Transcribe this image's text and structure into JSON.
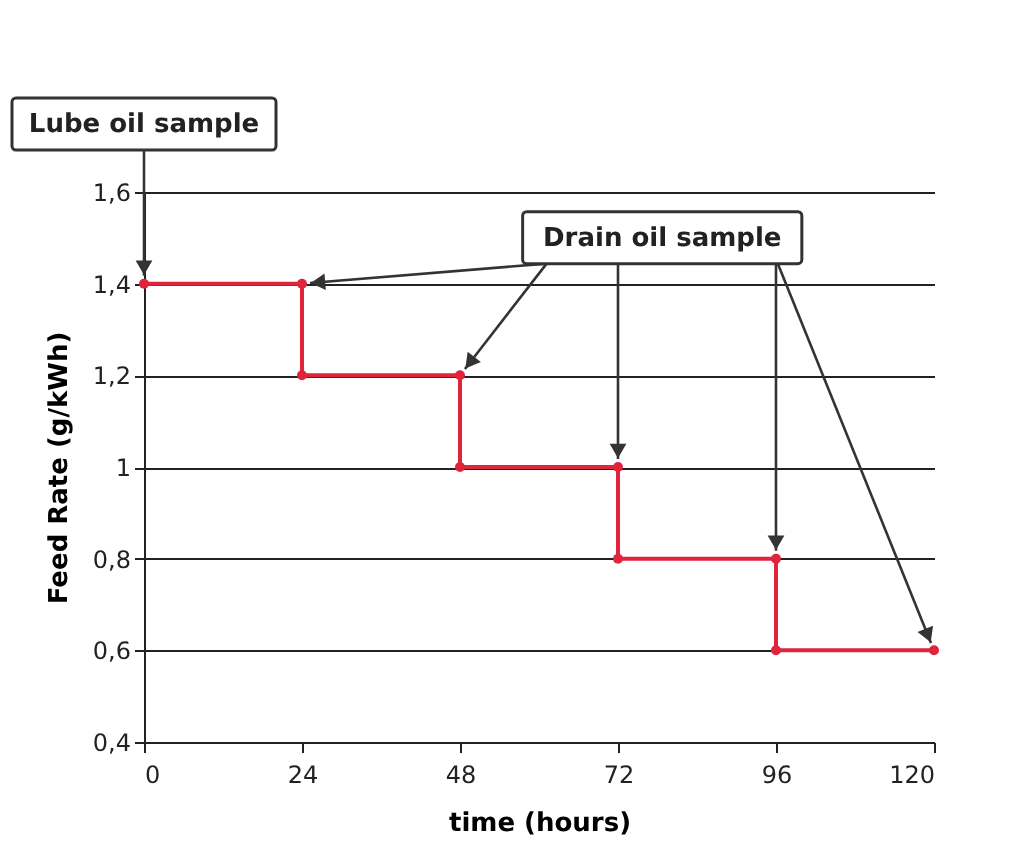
{
  "chart_data": {
    "type": "line",
    "xlabel": "time (hours)",
    "ylabel": "Feed Rate (g/kWh)",
    "xlim": [
      0,
      120
    ],
    "xticks": [
      0,
      24,
      48,
      72,
      96,
      120
    ],
    "ylim": [
      0.4,
      1.6
    ],
    "yticks": [
      {
        "value": 0.4,
        "label": "0,4"
      },
      {
        "value": 0.6,
        "label": "0,6"
      },
      {
        "value": 0.8,
        "label": "0,8"
      },
      {
        "value": 1,
        "label": "1"
      },
      {
        "value": 1.2,
        "label": "1,2"
      },
      {
        "value": 1.4,
        "label": "1,4"
      },
      {
        "value": 1.6,
        "label": "1,6"
      }
    ],
    "grid": "y",
    "marker": "circle",
    "line_style": "solid",
    "series": [
      {
        "color": "#e0243c",
        "x": [
          0,
          24,
          24,
          48,
          48,
          72,
          72,
          96,
          96,
          120
        ],
        "values": [
          1.4,
          1.4,
          1.2,
          1.2,
          1.0,
          1.0,
          0.8,
          0.8,
          0.6,
          0.6
        ]
      }
    ],
    "annotations": [
      {
        "text": "Lube oil sample",
        "x": 0,
        "y": 1.4
      },
      {
        "text": "Drain oil sample",
        "x": 24,
        "y": 1.4
      }
    ]
  }
}
